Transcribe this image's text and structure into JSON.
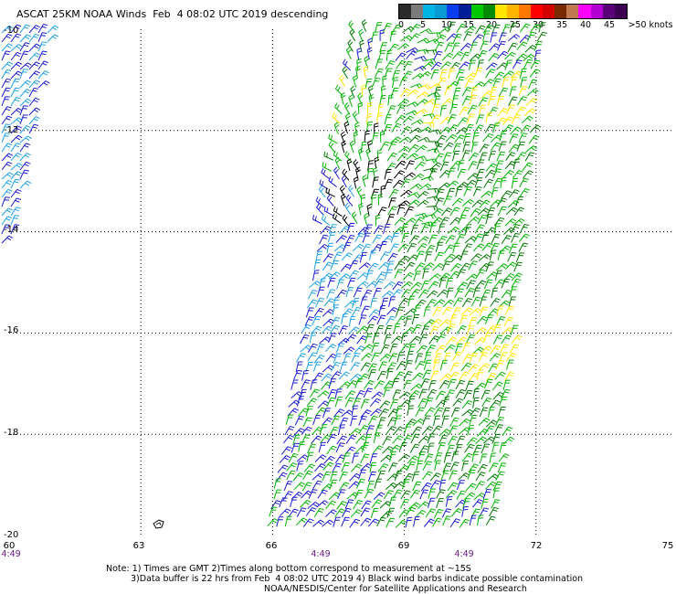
{
  "title": "ASCAT 25KM NOAA Winds  Feb  4 08:02 UTC 2019 descending",
  "legend": {
    "colors": [
      "#2a2a2a",
      "#7a7a7a",
      "#00b4e6",
      "#0a9ad2",
      "#0a3cf0",
      "#001e96",
      "#00c800",
      "#008c00",
      "#ffe600",
      "#ffb400",
      "#ff7800",
      "#ff0000",
      "#d20000",
      "#7a2a00",
      "#c07850",
      "#ff00ff",
      "#b400d2",
      "#5a0078",
      "#3c0050"
    ],
    "labels": [
      "0",
      "5",
      "10",
      "15",
      "20",
      "25",
      "30",
      "35",
      "40",
      "45",
      ">50 knots"
    ]
  },
  "axes": {
    "lat_labels": [
      "-10",
      "-12",
      "-14",
      "-16",
      "-18",
      "-20"
    ],
    "lon_labels": [
      "60",
      "63",
      "66",
      "69",
      "72",
      "75"
    ],
    "time_labels": [
      "4:49",
      "4:49",
      "4:49"
    ]
  },
  "notes": {
    "line1": "Note: 1) Times are GMT 2)Times along bottom correspond to measurement at ~15S",
    "line2": "3)Data buffer is 22 hrs from Feb  4 08:02 UTC 2019 4) Black wind barbs indicate possible contamination",
    "line3": "NOAA/NESDIS/Center for Satellite Applications and Research"
  },
  "map_data": {
    "lon_range": [
      60,
      75
    ],
    "lat_range": [
      -20,
      -10
    ],
    "wind_colors": {
      "black": "#000000",
      "blue": "#1a1ad2",
      "lightblue": "#1ea0e6",
      "green": "#00b400",
      "darkgreen": "#007800",
      "yellow": "#ffe600",
      "orange": "#ff9600",
      "red": "#e60000",
      "purple": "#6a1a8a",
      "coast": "#000000"
    }
  }
}
